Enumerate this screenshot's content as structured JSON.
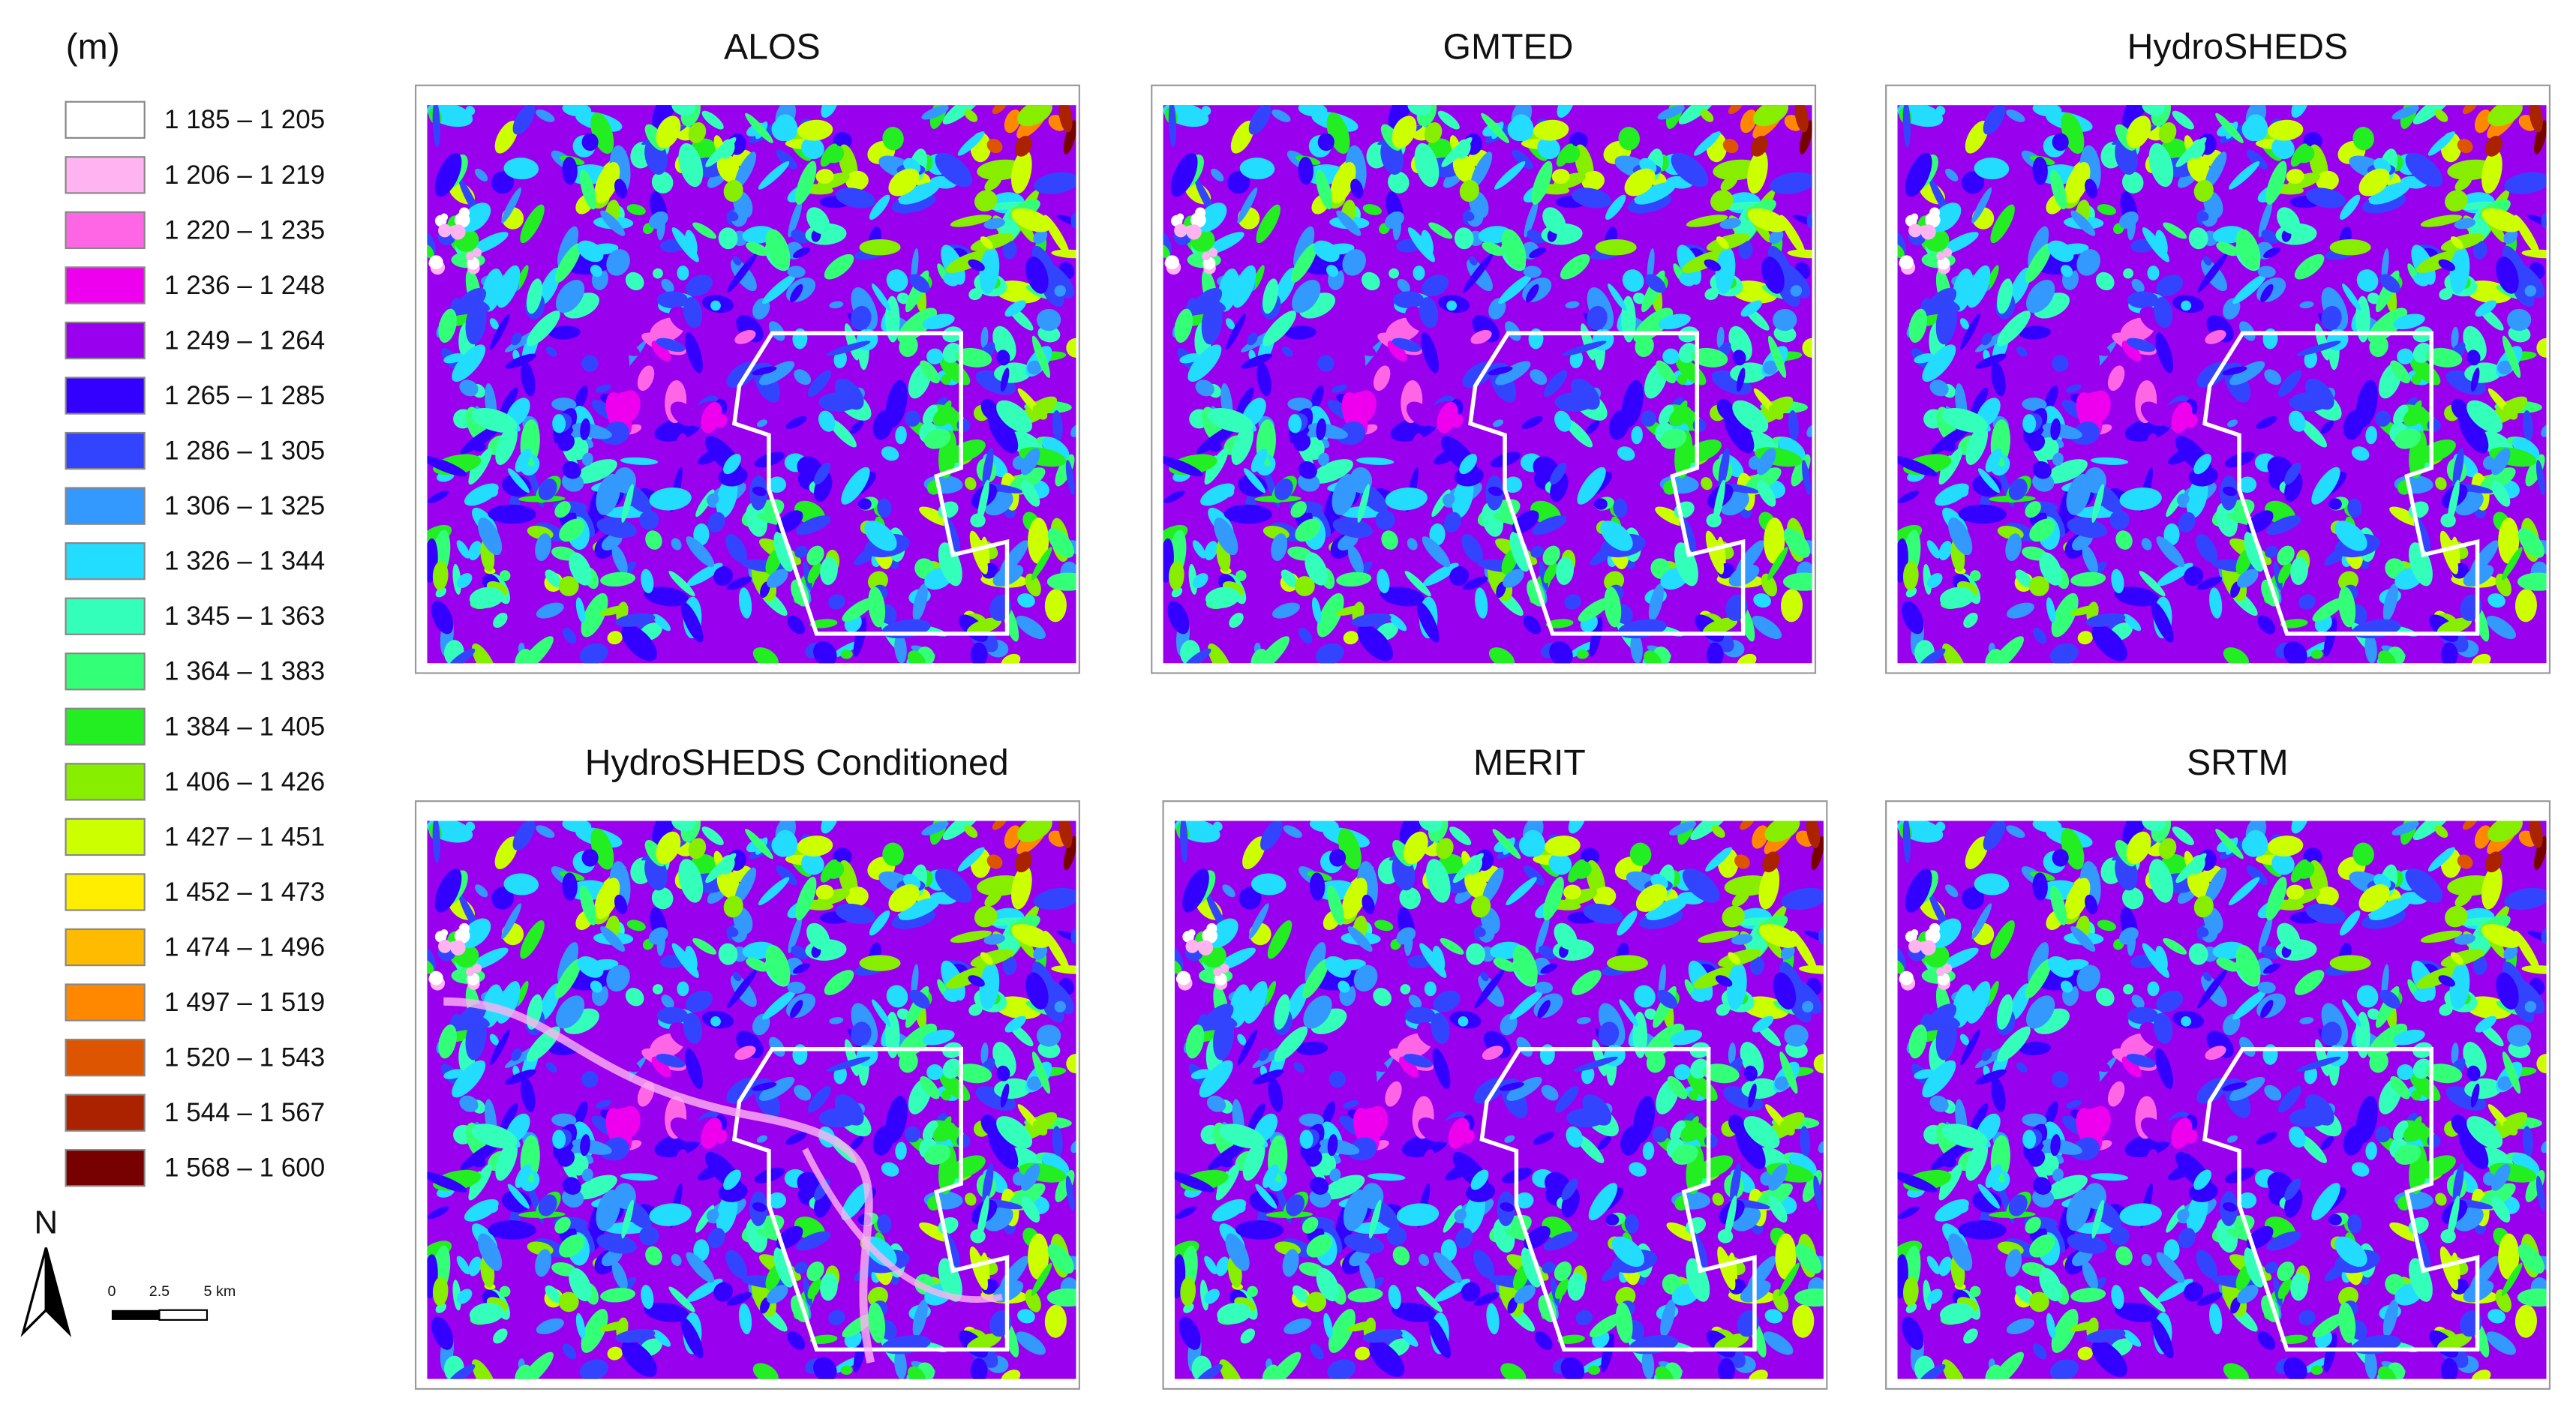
{
  "legend": {
    "unit": "(m)",
    "items": [
      {
        "label": "1 185 – 1 205",
        "color": "#ffffff"
      },
      {
        "label": "1 206 – 1 219",
        "color": "#ffb3f0"
      },
      {
        "label": "1 220 – 1 235",
        "color": "#ff66e6"
      },
      {
        "label": "1 236 – 1 248",
        "color": "#ee00ee"
      },
      {
        "label": "1 249 – 1 264",
        "color": "#9900ee"
      },
      {
        "label": "1 265 – 1 285",
        "color": "#3300ff"
      },
      {
        "label": "1 286 – 1 305",
        "color": "#3344ff"
      },
      {
        "label": "1 306 – 1 325",
        "color": "#3399ff"
      },
      {
        "label": "1 326 – 1 344",
        "color": "#22ddff"
      },
      {
        "label": "1 345 – 1 363",
        "color": "#33ffbb"
      },
      {
        "label": "1 364 – 1 383",
        "color": "#33ff77"
      },
      {
        "label": "1 384 – 1 405",
        "color": "#22ee22"
      },
      {
        "label": "1 406 – 1 426",
        "color": "#88ee00"
      },
      {
        "label": "1 427 – 1 451",
        "color": "#ccff00"
      },
      {
        "label": "1 452 – 1 473",
        "color": "#ffee00"
      },
      {
        "label": "1 474 – 1 496",
        "color": "#ffbb00"
      },
      {
        "label": "1 497 – 1 519",
        "color": "#ff8800"
      },
      {
        "label": "1 520 – 1 543",
        "color": "#dd5500"
      },
      {
        "label": "1 544 – 1 567",
        "color": "#aa2200"
      },
      {
        "label": "1 568 – 1 600",
        "color": "#770000"
      }
    ]
  },
  "north": "N",
  "scale_bar": [
    "0",
    "2.5",
    "5 km"
  ],
  "panels": [
    {
      "title": "ALOS"
    },
    {
      "title": "GMTED"
    },
    {
      "title": "HydroSHEDS"
    },
    {
      "title": "HydroSHEDS Conditioned"
    },
    {
      "title": "MERIT"
    },
    {
      "title": "SRTM"
    }
  ]
}
